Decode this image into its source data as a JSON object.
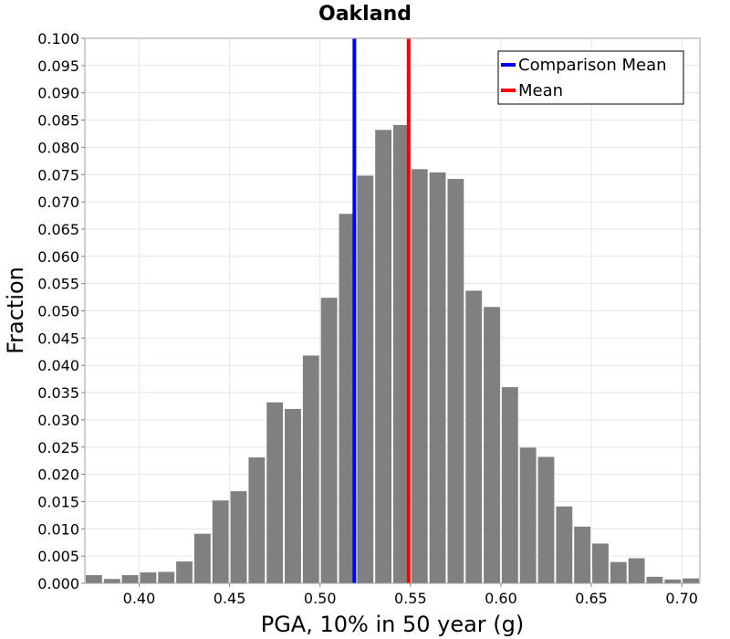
{
  "chart_data": {
    "type": "bar",
    "title": "Oakland",
    "xlabel": "PGA, 10% in 50 year (g)",
    "ylabel": "Fraction",
    "xlim": [
      0.37,
      0.71
    ],
    "ylim": [
      0,
      0.1
    ],
    "xticks": [
      "0.40",
      "0.45",
      "0.50",
      "0.55",
      "0.60",
      "0.65",
      "0.70"
    ],
    "yticks": [
      "0.000",
      "0.005",
      "0.010",
      "0.015",
      "0.020",
      "0.025",
      "0.030",
      "0.035",
      "0.040",
      "0.045",
      "0.050",
      "0.055",
      "0.060",
      "0.065",
      "0.070",
      "0.075",
      "0.080",
      "0.085",
      "0.090",
      "0.095",
      "0.100"
    ],
    "bin_width": 0.01,
    "bin_centers": [
      0.375,
      0.385,
      0.395,
      0.405,
      0.415,
      0.425,
      0.435,
      0.445,
      0.455,
      0.465,
      0.475,
      0.485,
      0.495,
      0.505,
      0.515,
      0.525,
      0.535,
      0.545,
      0.555,
      0.565,
      0.575,
      0.585,
      0.595,
      0.605,
      0.615,
      0.625,
      0.635,
      0.645,
      0.655,
      0.665,
      0.675,
      0.685,
      0.695,
      0.705
    ],
    "values": [
      0.0015,
      0.0008,
      0.0015,
      0.002,
      0.0021,
      0.004,
      0.0091,
      0.0152,
      0.0169,
      0.0231,
      0.0332,
      0.032,
      0.0418,
      0.0524,
      0.0678,
      0.0748,
      0.0832,
      0.0841,
      0.076,
      0.0754,
      0.0742,
      0.0537,
      0.0507,
      0.036,
      0.0249,
      0.0232,
      0.0141,
      0.0104,
      0.0073,
      0.0039,
      0.0046,
      0.0012,
      0.0007,
      0.0009
    ],
    "bar_color": "#808080",
    "grid": true,
    "vlines": [
      {
        "name": "Comparison Mean",
        "x": 0.519,
        "color": "#0000ff"
      },
      {
        "name": "Mean",
        "x": 0.549,
        "color": "#ff0000"
      }
    ],
    "legend": {
      "placement": "top-right",
      "entries": [
        {
          "label": "Comparison Mean",
          "color": "#0000ff"
        },
        {
          "label": "Mean",
          "color": "#ff0000"
        }
      ]
    }
  }
}
